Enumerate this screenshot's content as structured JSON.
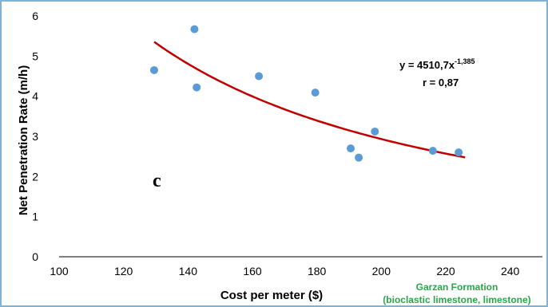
{
  "chart_data": {
    "type": "scatter",
    "title": "",
    "xlabel": "Cost per meter ($)",
    "ylabel": "Net Penetration Rate (m/h)",
    "xlim": [
      100,
      250
    ],
    "ylim": [
      0,
      6
    ],
    "x_ticks": [
      100,
      120,
      140,
      160,
      180,
      200,
      220,
      240
    ],
    "y_ticks": [
      0,
      1,
      2,
      3,
      4,
      5,
      6
    ],
    "grid": false,
    "points": [
      {
        "x": 129.5,
        "y": 4.65
      },
      {
        "x": 142.0,
        "y": 5.67
      },
      {
        "x": 142.7,
        "y": 4.22
      },
      {
        "x": 162.0,
        "y": 4.5
      },
      {
        "x": 179.5,
        "y": 4.09
      },
      {
        "x": 190.5,
        "y": 2.7
      },
      {
        "x": 193.0,
        "y": 2.47
      },
      {
        "x": 198.0,
        "y": 3.12
      },
      {
        "x": 216.0,
        "y": 2.64
      },
      {
        "x": 224.0,
        "y": 2.6
      }
    ],
    "trendline": {
      "type": "power",
      "a": 4510.7,
      "b": -1.385,
      "x_range": [
        129.5,
        226
      ]
    },
    "equation": {
      "prefix": "y = 4510,7x",
      "exponent": "-1,385"
    },
    "correlation": "r = 0,87",
    "panel_label": "c",
    "formation_name": "Garzan Formation",
    "formation_lithology": "(bioclastic limestone, limestone)",
    "colors": {
      "points": "#5b9bd5",
      "trendline": "#c00000",
      "frame": "#7fb3d5",
      "formation_text": "#2aa54a"
    }
  }
}
